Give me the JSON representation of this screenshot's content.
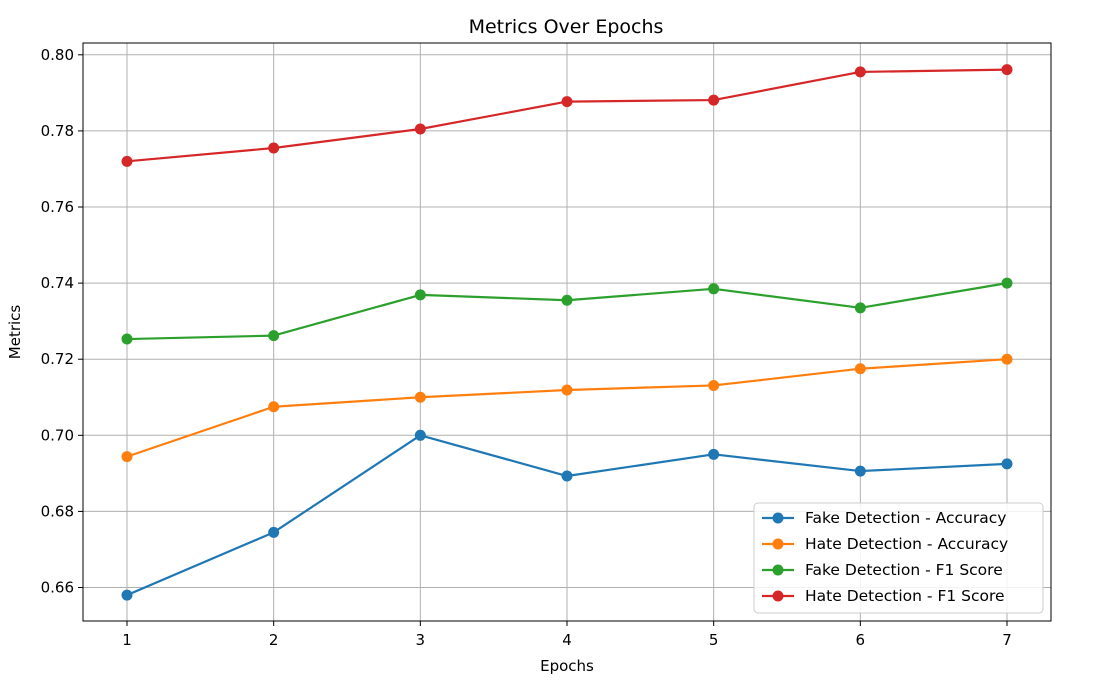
{
  "chart_data": {
    "type": "line",
    "title": "Metrics Over Epochs",
    "xlabel": "Epochs",
    "ylabel": "Metrics",
    "x": [
      1,
      2,
      3,
      4,
      5,
      6,
      7
    ],
    "xlim": [
      0.7,
      7.3
    ],
    "ylim": [
      0.6512,
      0.8031
    ],
    "yticks": [
      0.66,
      0.68,
      0.7,
      0.72,
      0.74,
      0.76,
      0.78,
      0.8
    ],
    "ytick_labels": [
      "0.66",
      "0.68",
      "0.70",
      "0.72",
      "0.74",
      "0.76",
      "0.78",
      "0.80"
    ],
    "xtick_labels": [
      "1",
      "2",
      "3",
      "4",
      "5",
      "6",
      "7"
    ],
    "grid": true,
    "legend_position": "bottom-right",
    "markers": "circle",
    "series": [
      {
        "name": "Fake Detection - Accuracy",
        "color": "#1f77b4",
        "values": [
          0.658,
          0.6745,
          0.7,
          0.6893,
          0.695,
          0.6906,
          0.6925
        ]
      },
      {
        "name": "Hate Detection - Accuracy",
        "color": "#ff7f0e",
        "values": [
          0.6944,
          0.7075,
          0.71,
          0.7119,
          0.7131,
          0.7175,
          0.72
        ]
      },
      {
        "name": "Fake Detection - F1 Score",
        "color": "#2ca02c",
        "values": [
          0.7253,
          0.7262,
          0.7369,
          0.7355,
          0.7385,
          0.7335,
          0.74
        ]
      },
      {
        "name": "Hate Detection - F1 Score",
        "color": "#d62728",
        "values": [
          0.772,
          0.7755,
          0.7805,
          0.7877,
          0.7881,
          0.7955,
          0.7961
        ]
      }
    ]
  }
}
